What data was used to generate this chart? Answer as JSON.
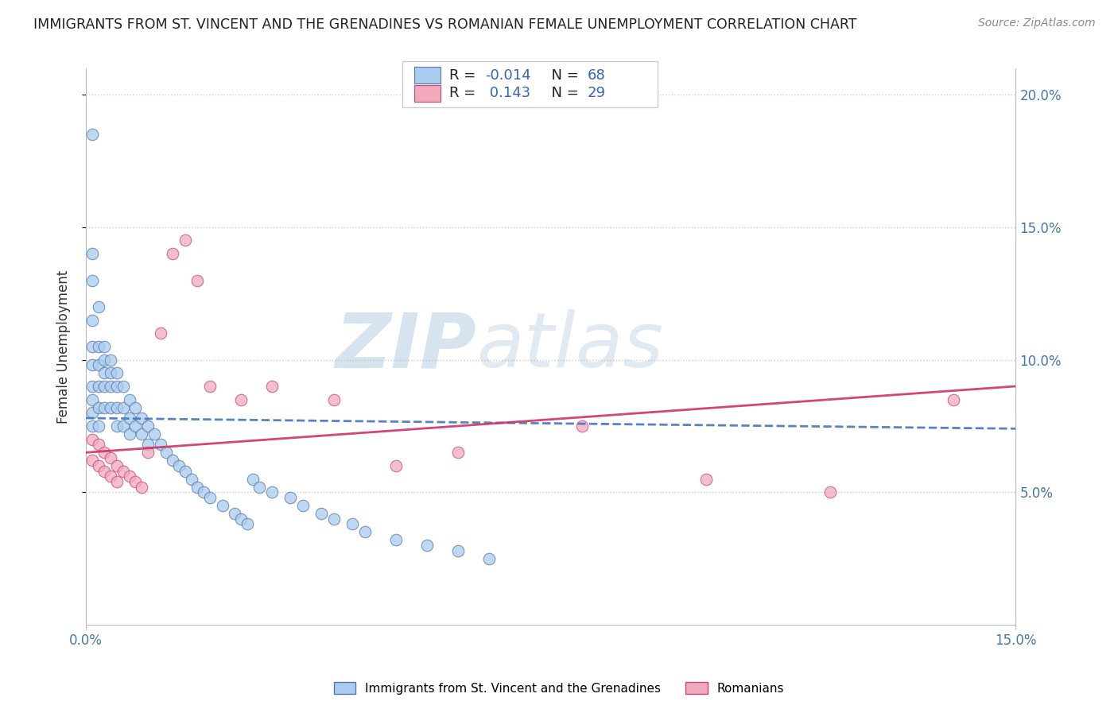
{
  "title": "IMMIGRANTS FROM ST. VINCENT AND THE GRENADINES VS ROMANIAN FEMALE UNEMPLOYMENT CORRELATION CHART",
  "source": "Source: ZipAtlas.com",
  "ylabel": "Female Unemployment",
  "color_blue": "#aaccee",
  "color_pink": "#f0aabb",
  "line_color_blue": "#5577aa",
  "line_color_pink": "#cc4477",
  "legend_label1": "Immigrants from St. Vincent and the Grenadines",
  "legend_label2": "Romanians",
  "watermark_zip": "ZIP",
  "watermark_atlas": "atlas",
  "xmin": 0.0,
  "xmax": 0.15,
  "ymin": 0.0,
  "ymax": 0.21,
  "blue_x": [
    0.001,
    0.001,
    0.001,
    0.001,
    0.001,
    0.001,
    0.001,
    0.001,
    0.001,
    0.001,
    0.002,
    0.002,
    0.002,
    0.002,
    0.002,
    0.002,
    0.003,
    0.003,
    0.003,
    0.003,
    0.003,
    0.004,
    0.004,
    0.004,
    0.004,
    0.005,
    0.005,
    0.005,
    0.005,
    0.006,
    0.006,
    0.006,
    0.007,
    0.007,
    0.007,
    0.008,
    0.008,
    0.009,
    0.009,
    0.01,
    0.01,
    0.011,
    0.012,
    0.013,
    0.014,
    0.015,
    0.016,
    0.017,
    0.018,
    0.019,
    0.02,
    0.022,
    0.024,
    0.025,
    0.026,
    0.027,
    0.028,
    0.03,
    0.033,
    0.035,
    0.038,
    0.04,
    0.043,
    0.045,
    0.05,
    0.055,
    0.06,
    0.065
  ],
  "blue_y": [
    0.185,
    0.14,
    0.13,
    0.115,
    0.105,
    0.098,
    0.09,
    0.085,
    0.08,
    0.075,
    0.12,
    0.105,
    0.098,
    0.09,
    0.082,
    0.075,
    0.105,
    0.1,
    0.095,
    0.09,
    0.082,
    0.1,
    0.095,
    0.09,
    0.082,
    0.095,
    0.09,
    0.082,
    0.075,
    0.09,
    0.082,
    0.075,
    0.085,
    0.078,
    0.072,
    0.082,
    0.075,
    0.078,
    0.072,
    0.075,
    0.068,
    0.072,
    0.068,
    0.065,
    0.062,
    0.06,
    0.058,
    0.055,
    0.052,
    0.05,
    0.048,
    0.045,
    0.042,
    0.04,
    0.038,
    0.055,
    0.052,
    0.05,
    0.048,
    0.045,
    0.042,
    0.04,
    0.038,
    0.035,
    0.032,
    0.03,
    0.028,
    0.025
  ],
  "pink_x": [
    0.001,
    0.001,
    0.002,
    0.002,
    0.003,
    0.003,
    0.004,
    0.004,
    0.005,
    0.005,
    0.006,
    0.007,
    0.008,
    0.009,
    0.01,
    0.012,
    0.014,
    0.016,
    0.018,
    0.02,
    0.025,
    0.03,
    0.04,
    0.05,
    0.06,
    0.08,
    0.1,
    0.12,
    0.14
  ],
  "pink_y": [
    0.07,
    0.062,
    0.068,
    0.06,
    0.065,
    0.058,
    0.063,
    0.056,
    0.06,
    0.054,
    0.058,
    0.056,
    0.054,
    0.052,
    0.065,
    0.11,
    0.14,
    0.145,
    0.13,
    0.09,
    0.085,
    0.09,
    0.085,
    0.06,
    0.065,
    0.075,
    0.055,
    0.05,
    0.085
  ],
  "blue_line_x": [
    0.0,
    0.15
  ],
  "blue_line_y": [
    0.078,
    0.074
  ],
  "pink_line_x": [
    0.0,
    0.15
  ],
  "pink_line_y": [
    0.065,
    0.09
  ]
}
